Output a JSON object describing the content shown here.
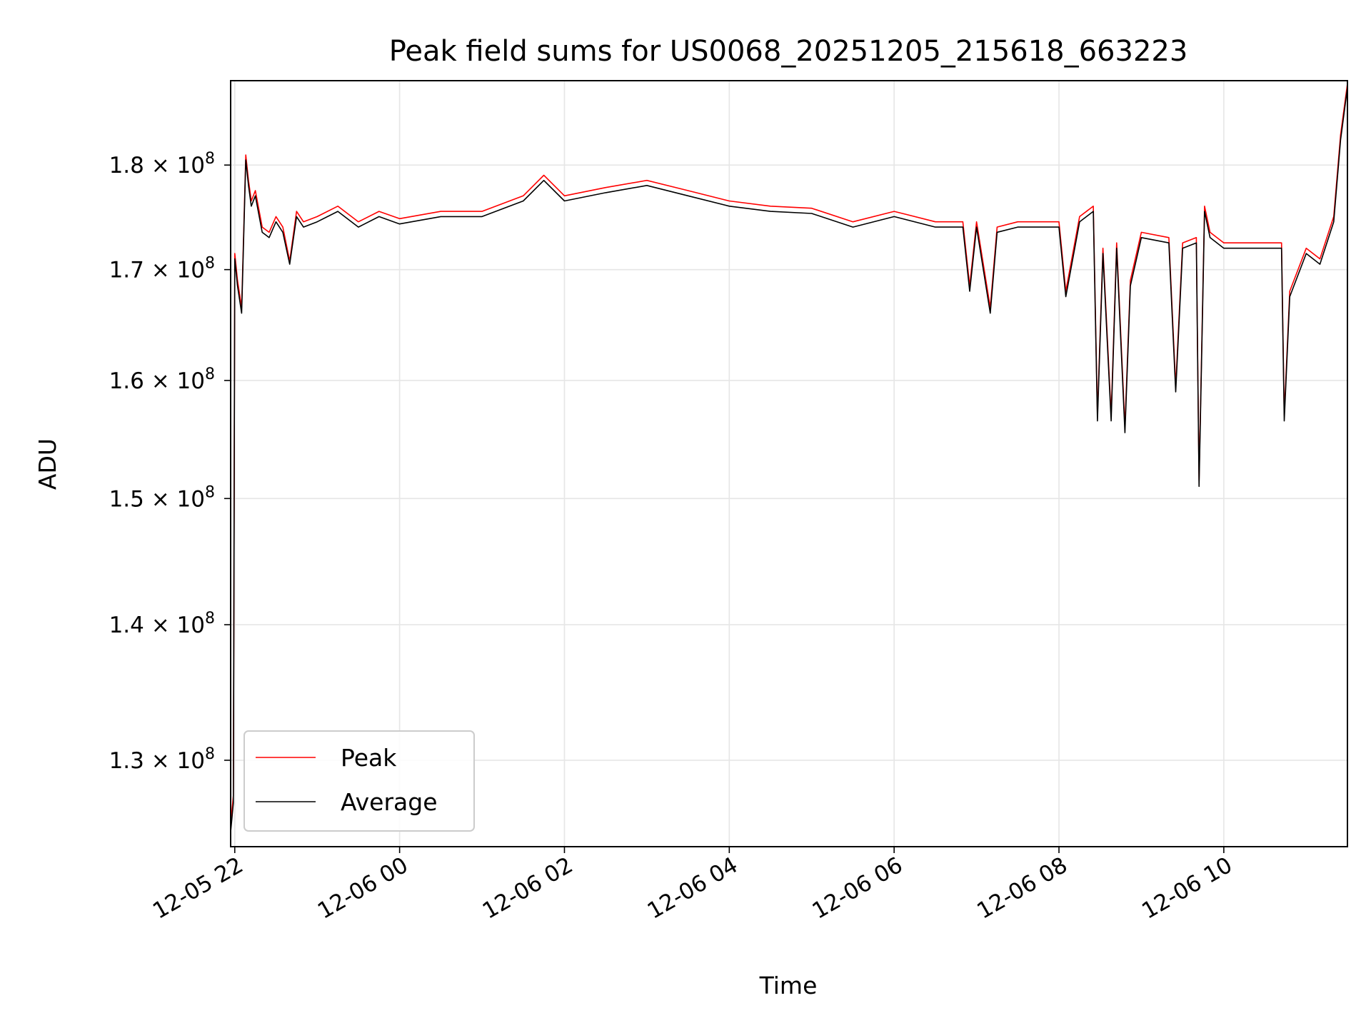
{
  "chart_data": {
    "type": "line",
    "title": "Peak field sums for US0068_20251205_215618_663223",
    "xlabel": "Time",
    "ylabel": "ADU",
    "y_scale": "log",
    "xlim": [
      "2025-12-05 21:57",
      "2025-12-06 11:30"
    ],
    "ylim": [
      124000000,
      188500000
    ],
    "grid": true,
    "legend_position": "lower-left",
    "x_ticks": [
      "12-05 22",
      "12-06 00",
      "12-06 02",
      "12-06 04",
      "12-06 06",
      "12-06 08",
      "12-06 10"
    ],
    "x_tick_times": [
      "2025-12-05 22:00",
      "2025-12-06 00:00",
      "2025-12-06 02:00",
      "2025-12-06 04:00",
      "2025-12-06 06:00",
      "2025-12-06 08:00",
      "2025-12-06 10:00"
    ],
    "y_ticks": [
      {
        "value": 130000000,
        "mantissa": "1.3",
        "exp": "8"
      },
      {
        "value": 140000000,
        "mantissa": "1.4",
        "exp": "8"
      },
      {
        "value": 150000000,
        "mantissa": "1.5",
        "exp": "8"
      },
      {
        "value": 160000000,
        "mantissa": "1.6",
        "exp": "8"
      },
      {
        "value": 170000000,
        "mantissa": "1.7",
        "exp": "8"
      },
      {
        "value": 180000000,
        "mantissa": "1.8",
        "exp": "8"
      }
    ],
    "times": [
      "2025-12-05 21:57",
      "2025-12-05 21:59",
      "2025-12-05 22:00",
      "2025-12-05 22:02",
      "2025-12-05 22:05",
      "2025-12-05 22:08",
      "2025-12-05 22:10",
      "2025-12-05 22:12",
      "2025-12-05 22:15",
      "2025-12-05 22:20",
      "2025-12-05 22:25",
      "2025-12-05 22:30",
      "2025-12-05 22:35",
      "2025-12-05 22:40",
      "2025-12-05 22:45",
      "2025-12-05 22:50",
      "2025-12-05 23:00",
      "2025-12-05 23:15",
      "2025-12-05 23:30",
      "2025-12-05 23:45",
      "2025-12-06 00:00",
      "2025-12-06 00:30",
      "2025-12-06 01:00",
      "2025-12-06 01:30",
      "2025-12-06 01:45",
      "2025-12-06 02:00",
      "2025-12-06 02:30",
      "2025-12-06 03:00",
      "2025-12-06 03:30",
      "2025-12-06 04:00",
      "2025-12-06 04:30",
      "2025-12-06 05:00",
      "2025-12-06 05:30",
      "2025-12-06 06:00",
      "2025-12-06 06:30",
      "2025-12-06 06:50",
      "2025-12-06 06:55",
      "2025-12-06 07:00",
      "2025-12-06 07:10",
      "2025-12-06 07:15",
      "2025-12-06 07:30",
      "2025-12-06 08:00",
      "2025-12-06 08:05",
      "2025-12-06 08:15",
      "2025-12-06 08:25",
      "2025-12-06 08:28",
      "2025-12-06 08:32",
      "2025-12-06 08:38",
      "2025-12-06 08:42",
      "2025-12-06 08:48",
      "2025-12-06 08:52",
      "2025-12-06 09:00",
      "2025-12-06 09:20",
      "2025-12-06 09:25",
      "2025-12-06 09:30",
      "2025-12-06 09:40",
      "2025-12-06 09:42",
      "2025-12-06 09:46",
      "2025-12-06 09:50",
      "2025-12-06 10:00",
      "2025-12-06 10:30",
      "2025-12-06 10:42",
      "2025-12-06 10:44",
      "2025-12-06 10:48",
      "2025-12-06 11:00",
      "2025-12-06 11:10",
      "2025-12-06 11:20",
      "2025-12-06 11:25",
      "2025-12-06 11:30"
    ],
    "series": [
      {
        "name": "Peak",
        "color": "#ff0000",
        "values": [
          125500000,
          127500000,
          171500000,
          169000000,
          166500000,
          181000000,
          178500000,
          176500000,
          177500000,
          174000000,
          173500000,
          175000000,
          174000000,
          170800000,
          175500000,
          174500000,
          175000000,
          176000000,
          174500000,
          175500000,
          174800000,
          175500000,
          175500000,
          177000000,
          179000000,
          177000000,
          177800000,
          178500000,
          177500000,
          176500000,
          176000000,
          175800000,
          174500000,
          175500000,
          174500000,
          174500000,
          168500000,
          174500000,
          166500000,
          174000000,
          174500000,
          174500000,
          168000000,
          175000000,
          176000000,
          157000000,
          172000000,
          157000000,
          172500000,
          156000000,
          169000000,
          173500000,
          173000000,
          159500000,
          172500000,
          173000000,
          151500000,
          176000000,
          173500000,
          172500000,
          172500000,
          172500000,
          157000000,
          168000000,
          172000000,
          171000000,
          175000000,
          183000000,
          188200000
        ]
      },
      {
        "name": "Average",
        "color": "#000000",
        "values": [
          125000000,
          127000000,
          171000000,
          168500000,
          166000000,
          180500000,
          178000000,
          176000000,
          177000000,
          173500000,
          173000000,
          174500000,
          173500000,
          170500000,
          175000000,
          174000000,
          174500000,
          175500000,
          174000000,
          175000000,
          174300000,
          175000000,
          175000000,
          176500000,
          178500000,
          176500000,
          177300000,
          178000000,
          177000000,
          176000000,
          175500000,
          175300000,
          174000000,
          175000000,
          174000000,
          174000000,
          168000000,
          174000000,
          166000000,
          173500000,
          174000000,
          174000000,
          167500000,
          174500000,
          175500000,
          156500000,
          171500000,
          156500000,
          172000000,
          155500000,
          168500000,
          173000000,
          172500000,
          159000000,
          172000000,
          172500000,
          151000000,
          175500000,
          173000000,
          172000000,
          172000000,
          172000000,
          156500000,
          167500000,
          171500000,
          170500000,
          174500000,
          182500000,
          187800000
        ]
      }
    ]
  }
}
